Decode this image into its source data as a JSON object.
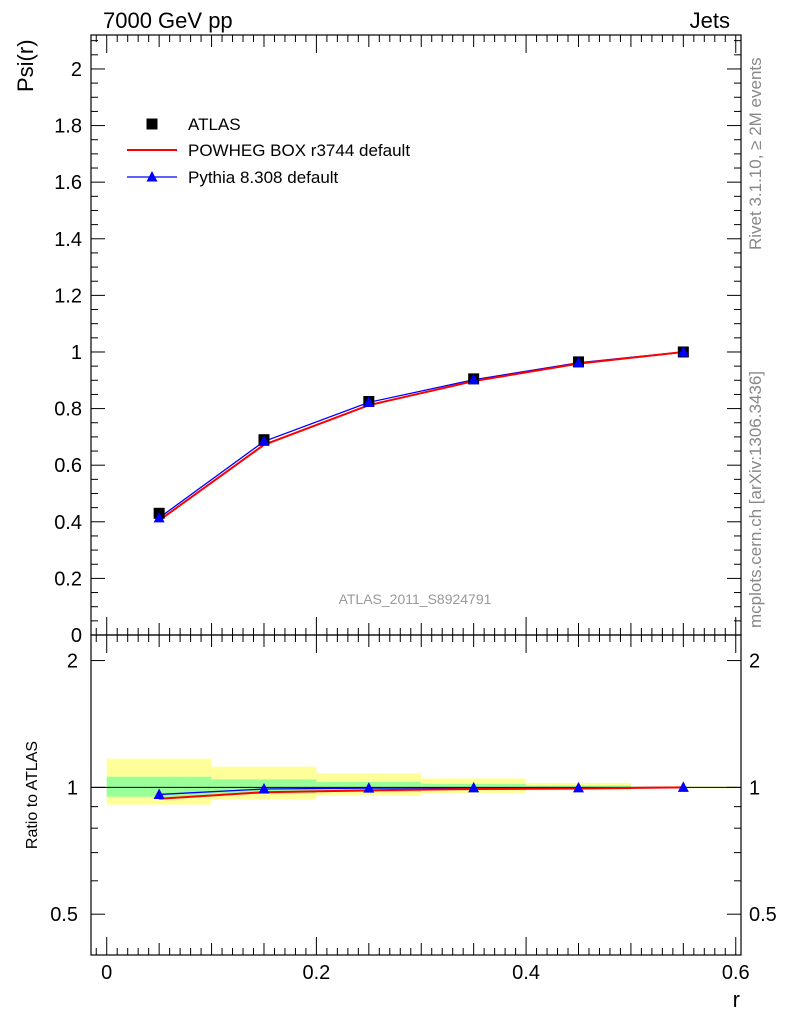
{
  "header": {
    "left": "7000 GeV pp",
    "right": "Jets"
  },
  "side": {
    "rivet": "Rivet 3.1.10, ≥ 2M events",
    "mcplots": "mcplots.cern.ch [arXiv:1306.3436]"
  },
  "analysis_label": "ATLAS_2011_S8924791",
  "colors": {
    "data": "#000000",
    "powheg": "#ff0000",
    "pythia": "#0000ff",
    "band_inner": "#99ff99",
    "band_outer": "#ffff99"
  },
  "chart_data": [
    {
      "type": "line",
      "title": "",
      "xlabel": "",
      "ylabel": "Psi(r)",
      "xlim": [
        -0.015,
        0.605
      ],
      "ylim": [
        0,
        2.12
      ],
      "yticks": [
        0,
        0.2,
        0.4,
        0.6,
        0.8,
        1,
        1.2,
        1.4,
        1.6,
        1.8,
        2
      ],
      "ytick_labels": [
        "0",
        "0.2",
        "0.4",
        "0.6",
        "0.8",
        "1",
        "1.2",
        "1.4",
        "1.6",
        "1.8",
        "2"
      ],
      "x": [
        0.05,
        0.15,
        0.25,
        0.35,
        0.45,
        0.55
      ],
      "legend": "top-left",
      "series": [
        {
          "name": "ATLAS",
          "style": "markers",
          "values": [
            0.43,
            0.69,
            0.825,
            0.905,
            0.965,
            1.0
          ]
        },
        {
          "name": "POWHEG BOX r3744 default",
          "style": "line",
          "values": [
            0.405,
            0.672,
            0.812,
            0.897,
            0.959,
            1.0
          ]
        },
        {
          "name": "Pythia 8.308 default",
          "style": "line-markers",
          "values": [
            0.414,
            0.684,
            0.822,
            0.902,
            0.962,
            1.0
          ]
        }
      ]
    },
    {
      "type": "line",
      "title": "",
      "xlabel": "r",
      "ylabel": "Ratio to ATLAS",
      "xlim": [
        -0.015,
        0.605
      ],
      "ylim": [
        0.4,
        2.3
      ],
      "xticks": [
        0,
        0.2,
        0.4,
        0.6
      ],
      "xtick_labels": [
        "0",
        "0.2",
        "0.4",
        "0.6"
      ],
      "yticks": [
        0.5,
        1,
        2
      ],
      "ytick_labels": [
        "0.5",
        "1",
        "2"
      ],
      "x": [
        0.05,
        0.15,
        0.25,
        0.35,
        0.45,
        0.55
      ],
      "bands": {
        "bins": [
          [
            0.0,
            0.1
          ],
          [
            0.1,
            0.2
          ],
          [
            0.2,
            0.3
          ],
          [
            0.3,
            0.4
          ],
          [
            0.4,
            0.5
          ],
          [
            0.5,
            0.6
          ]
        ],
        "inner": [
          [
            0.95,
            1.06
          ],
          [
            0.965,
            1.045
          ],
          [
            0.975,
            1.03
          ],
          [
            0.985,
            1.02
          ],
          [
            0.99,
            1.01
          ],
          [
            0.997,
            1.003
          ]
        ],
        "outer": [
          [
            0.91,
            1.17
          ],
          [
            0.935,
            1.12
          ],
          [
            0.955,
            1.08
          ],
          [
            0.97,
            1.05
          ],
          [
            0.985,
            1.025
          ],
          [
            0.995,
            1.005
          ]
        ]
      },
      "series": [
        {
          "name": "POWHEG BOX r3744 default",
          "values": [
            0.94,
            0.974,
            0.984,
            0.991,
            0.994,
            1.0
          ]
        },
        {
          "name": "Pythia 8.308 default",
          "values": [
            0.962,
            0.991,
            0.996,
            0.997,
            0.997,
            1.0
          ]
        }
      ]
    }
  ]
}
